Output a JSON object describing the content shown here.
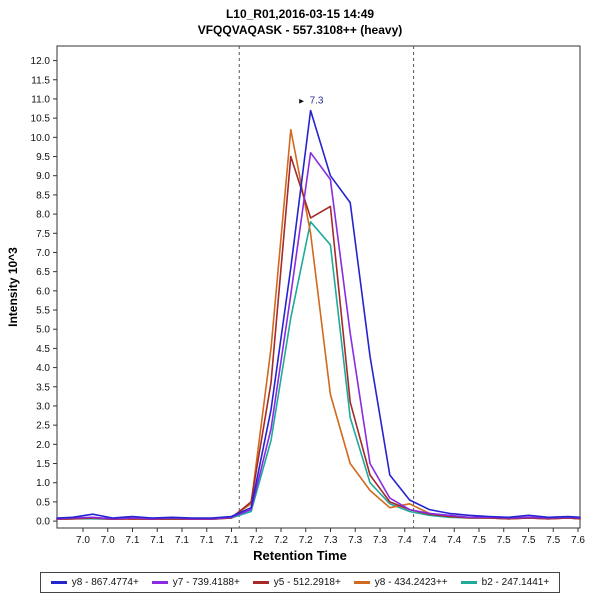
{
  "header": {
    "title": "L10_R01,2016-03-15 14:49",
    "subtitle": "VFQQVAQASK - 557.3108++ (heavy)"
  },
  "chart_data": {
    "type": "line",
    "title": "L10_R01,2016-03-15 14:49",
    "subtitle": "VFQQVAQASK - 557.3108++ (heavy)",
    "xlabel": "Retention Time",
    "ylabel": "Intensity 10^3",
    "xlim": [
      6.98,
      7.64
    ],
    "ylim": [
      -0.18,
      12.38
    ],
    "grid": false,
    "legend_position": "bottom",
    "xticks": [
      "7.0",
      "7.0",
      "7.1",
      "7.1",
      "7.1",
      "7.1",
      "7.1",
      "7.2",
      "7.2",
      "7.2",
      "7.3",
      "7.3",
      "7.3",
      "7.4",
      "7.4",
      "7.4",
      "7.5",
      "7.5",
      "7.5",
      "7.5",
      "7.6"
    ],
    "yticks": [
      "12.0",
      "11.5",
      "11.0",
      "10.5",
      "10.0",
      "9.5",
      "9.0",
      "8.5",
      "8.0",
      "7.5",
      "7.0",
      "6.5",
      "6.0",
      "5.5",
      "5.0",
      "4.5",
      "4.0",
      "3.5",
      "3.0",
      "2.5",
      "2.0",
      "1.5",
      "1.0",
      "0.5",
      "0.0"
    ],
    "integration_boundaries": [
      7.21,
      7.43
    ],
    "annotation": {
      "x": 7.3,
      "y": 10.7,
      "label": "7.3"
    },
    "x": [
      6.98,
      7.0,
      7.025,
      7.05,
      7.075,
      7.1,
      7.125,
      7.15,
      7.175,
      7.2,
      7.225,
      7.25,
      7.275,
      7.3,
      7.325,
      7.35,
      7.375,
      7.4,
      7.425,
      7.45,
      7.475,
      7.5,
      7.525,
      7.55,
      7.575,
      7.6,
      7.625,
      7.64
    ],
    "series": [
      {
        "name": "y8 - 867.4774+",
        "color": "#2424d0",
        "values": [
          0.08,
          0.1,
          0.18,
          0.08,
          0.12,
          0.08,
          0.1,
          0.08,
          0.08,
          0.12,
          0.35,
          2.9,
          6.6,
          10.7,
          9.0,
          8.3,
          4.3,
          1.2,
          0.55,
          0.3,
          0.2,
          0.15,
          0.12,
          0.1,
          0.15,
          0.1,
          0.12,
          0.1
        ]
      },
      {
        "name": "y7 - 739.4188+",
        "color": "#8a2be2",
        "values": [
          0.06,
          0.08,
          0.1,
          0.06,
          0.08,
          0.06,
          0.08,
          0.06,
          0.06,
          0.1,
          0.3,
          2.4,
          5.9,
          9.6,
          8.9,
          4.9,
          1.5,
          0.6,
          0.3,
          0.2,
          0.15,
          0.1,
          0.1,
          0.08,
          0.1,
          0.08,
          0.1,
          0.08
        ]
      },
      {
        "name": "y5 - 512.2918+",
        "color": "#a52a2a",
        "values": [
          0.05,
          0.06,
          0.08,
          0.05,
          0.06,
          0.05,
          0.06,
          0.05,
          0.05,
          0.08,
          0.5,
          3.6,
          9.5,
          7.9,
          8.2,
          3.1,
          1.2,
          0.5,
          0.3,
          0.18,
          0.12,
          0.08,
          0.08,
          0.06,
          0.08,
          0.06,
          0.08,
          0.06
        ]
      },
      {
        "name": "y8 - 434.2423++",
        "color": "#d2691e",
        "values": [
          0.05,
          0.06,
          0.08,
          0.05,
          0.06,
          0.05,
          0.06,
          0.05,
          0.06,
          0.1,
          0.45,
          4.5,
          10.2,
          7.5,
          3.3,
          1.5,
          0.8,
          0.35,
          0.45,
          0.2,
          0.12,
          0.1,
          0.08,
          0.06,
          0.08,
          0.06,
          0.08,
          0.06
        ]
      },
      {
        "name": "b2 - 247.1441+",
        "color": "#1faa9a",
        "values": [
          0.05,
          0.06,
          0.06,
          0.05,
          0.06,
          0.05,
          0.05,
          0.05,
          0.05,
          0.08,
          0.25,
          2.1,
          5.3,
          7.8,
          7.2,
          2.7,
          1.0,
          0.45,
          0.25,
          0.15,
          0.1,
          0.08,
          0.08,
          0.06,
          0.08,
          0.06,
          0.08,
          0.06
        ]
      }
    ]
  }
}
